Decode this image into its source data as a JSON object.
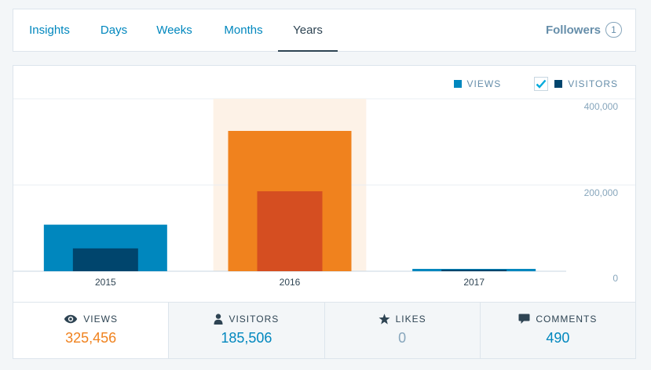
{
  "tabs": [
    {
      "label": "Insights"
    },
    {
      "label": "Days"
    },
    {
      "label": "Weeks"
    },
    {
      "label": "Months"
    },
    {
      "label": "Years"
    }
  ],
  "active_tab": "Years",
  "followers": {
    "label": "Followers",
    "count": "1"
  },
  "legend": {
    "views_label": "VIEWS",
    "visitors_label": "VISITORS",
    "visitors_checked": true
  },
  "colors": {
    "views": "#0087be",
    "visitors": "#00456d",
    "selected_views": "#f0821e",
    "selected_visitors": "#d54e21",
    "selected_band": "#fdf2e7"
  },
  "chart_data": {
    "type": "bar",
    "categories": [
      "2015",
      "2016",
      "2017"
    ],
    "series": [
      {
        "name": "VIEWS",
        "values": [
          108000,
          325456,
          4000
        ]
      },
      {
        "name": "VISITORS",
        "values": [
          53000,
          185506,
          2000
        ]
      }
    ],
    "selected_category": "2016",
    "ylim": [
      0,
      400000
    ],
    "yticks": [
      0,
      200000,
      400000
    ],
    "ytick_labels": [
      "0",
      "200,000",
      "400,000"
    ],
    "grid": true
  },
  "stats": [
    {
      "label": "VIEWS",
      "value": "325,456",
      "icon": "eye-icon"
    },
    {
      "label": "VISITORS",
      "value": "185,506",
      "icon": "person-icon"
    },
    {
      "label": "LIKES",
      "value": "0",
      "icon": "star-icon"
    },
    {
      "label": "COMMENTS",
      "value": "490",
      "icon": "comment-icon"
    }
  ]
}
